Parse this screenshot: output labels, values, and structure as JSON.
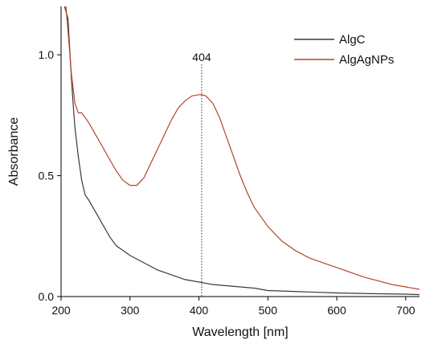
{
  "chart_data": {
    "type": "line",
    "xlabel": "Wavelength [nm]",
    "ylabel": "Absorbance",
    "xlim": [
      200,
      720
    ],
    "ylim": [
      0,
      1.2
    ],
    "x_ticks": [
      200,
      300,
      400,
      500,
      600,
      700
    ],
    "x_tick_labels": [
      "200",
      "300",
      "400",
      "500",
      "600",
      "700"
    ],
    "y_ticks": [
      0,
      0.5,
      1.0
    ],
    "y_tick_labels": [
      "0.0",
      "0.5",
      "1.0"
    ],
    "legend_position": "top-right",
    "grid": false,
    "annotation": {
      "label": "404",
      "x": 404
    },
    "series": [
      {
        "name": "AlgC",
        "color": "#3a3a3a",
        "x": [
          205,
          210,
          212,
          214,
          216,
          218,
          220,
          225,
          230,
          235,
          240,
          250,
          260,
          270,
          280,
          290,
          300,
          320,
          340,
          360,
          380,
          400,
          420,
          440,
          460,
          480,
          500,
          550,
          600,
          650,
          700,
          720
        ],
        "y": [
          1.2,
          1.15,
          1.05,
          0.95,
          0.86,
          0.78,
          0.7,
          0.58,
          0.48,
          0.42,
          0.4,
          0.35,
          0.3,
          0.25,
          0.21,
          0.19,
          0.17,
          0.14,
          0.11,
          0.09,
          0.07,
          0.06,
          0.05,
          0.045,
          0.04,
          0.035,
          0.025,
          0.02,
          0.015,
          0.012,
          0.01,
          0.008
        ]
      },
      {
        "name": "AlgAgNPs",
        "color": "#b5452c",
        "x": [
          207,
          210,
          215,
          220,
          225,
          230,
          240,
          250,
          260,
          270,
          280,
          290,
          300,
          310,
          320,
          330,
          340,
          350,
          360,
          370,
          380,
          390,
          400,
          404,
          410,
          420,
          430,
          440,
          450,
          460,
          470,
          480,
          500,
          520,
          540,
          560,
          580,
          600,
          620,
          640,
          660,
          680,
          700,
          720
        ],
        "y": [
          1.2,
          1.1,
          0.92,
          0.8,
          0.76,
          0.76,
          0.72,
          0.67,
          0.62,
          0.57,
          0.52,
          0.48,
          0.46,
          0.46,
          0.49,
          0.55,
          0.61,
          0.67,
          0.73,
          0.78,
          0.81,
          0.83,
          0.835,
          0.835,
          0.83,
          0.8,
          0.74,
          0.66,
          0.58,
          0.5,
          0.43,
          0.37,
          0.29,
          0.23,
          0.19,
          0.16,
          0.14,
          0.12,
          0.1,
          0.08,
          0.065,
          0.05,
          0.04,
          0.03
        ]
      }
    ]
  }
}
